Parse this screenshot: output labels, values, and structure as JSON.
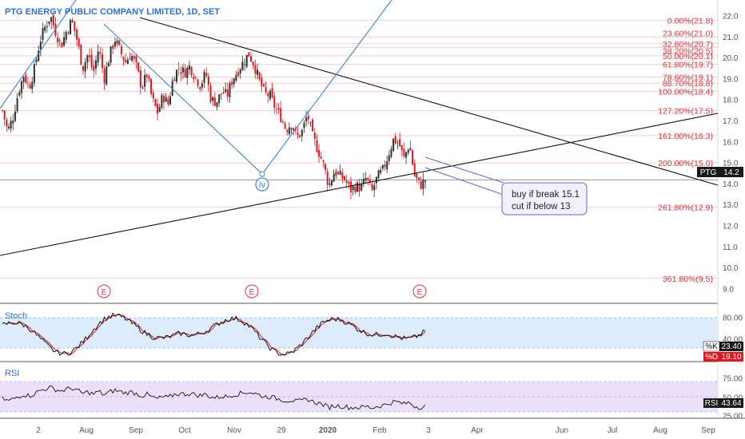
{
  "colors": {
    "up": "#2e2e2e",
    "down": "#e0161f",
    "fib": "#e8313a",
    "trend": "#111111",
    "wave": "#3a86d8",
    "stoch_bg": "#dcecfb",
    "rsi_bg": "#ece0fb",
    "k_line": "#111111",
    "d_line": "#e0161f",
    "note_border": "#5b6bd6",
    "note_bg": "#f3f0ff"
  },
  "chart_data": {
    "type": "candlestick",
    "title": "PTG ENERGY PUBLIC COMPANY LIMITED, 1D, SET",
    "symbol": "PTG",
    "last_price": "14.2",
    "x_tick_labels": [
      "2",
      "Aug",
      "Sep",
      "Oct",
      "Nov",
      "29",
      "2020",
      "Feb",
      "3",
      "Apr",
      "Jun",
      "Jul",
      "Aug",
      "Sep"
    ],
    "y_tick_labels": [
      "22.0",
      "21.0",
      "20.0",
      "19.0",
      "18.0",
      "17.0",
      "16.0",
      "15.0",
      "14.0",
      "13.0",
      "12.0",
      "11.0",
      "10.0",
      "9.0"
    ],
    "ylim": [
      8.5,
      22.3
    ],
    "fibonacci_levels": [
      {
        "label": "0.00%(21.8)",
        "price": 21.8
      },
      {
        "label": "23.60%(21.0)",
        "price": 21.0
      },
      {
        "label": "32.80%(20.7)",
        "price": 20.7
      },
      {
        "label": "38.20%(20.5)",
        "price": 20.5
      },
      {
        "label": "50.00%(20.1)",
        "price": 20.1
      },
      {
        "label": "61.80%(19.7)",
        "price": 19.7
      },
      {
        "label": "78.60%(19.1)",
        "price": 19.1
      },
      {
        "label": "88.70%(18.8)",
        "price": 18.8
      },
      {
        "label": "100.00%(18.4)",
        "price": 18.4
      },
      {
        "label": "127.20%(17.5)",
        "price": 17.5
      },
      {
        "label": "161.00%(16.3)",
        "price": 16.3
      },
      {
        "label": "200.00%(15.0)",
        "price": 15.0
      },
      {
        "label": "261.80%(12.9)",
        "price": 12.9
      },
      {
        "label": "361.80%(9.5)",
        "price": 9.5
      }
    ],
    "close_path": [
      17.5,
      16.5,
      17.2,
      18.4,
      19.2,
      18.6,
      19.5,
      20.8,
      21.5,
      22.0,
      21.2,
      20.6,
      21.3,
      21.8,
      20.8,
      19.5,
      20.2,
      19.3,
      20.5,
      19.0,
      20.1,
      20.9,
      20.3,
      19.8,
      20.2,
      19.6,
      18.6,
      19.2,
      18.0,
      17.4,
      18.2,
      17.8,
      19.2,
      19.5,
      19.3,
      19.6,
      19.1,
      18.7,
      19.3,
      18.0,
      17.9,
      18.4,
      18.2,
      19.0,
      19.4,
      19.8,
      20.2,
      19.7,
      18.9,
      18.3,
      18.2,
      17.6,
      17.2,
      16.6,
      16.9,
      16.2,
      16.5,
      17.3,
      16.2,
      15.6,
      14.9,
      13.9,
      14.6,
      14.4,
      14.2,
      13.7,
      13.9,
      13.8,
      14.3,
      13.6,
      14.3,
      14.6,
      15.3,
      16.1,
      16.0,
      15.2,
      15.9,
      14.4,
      13.9,
      14.2
    ],
    "stoch": {
      "label": "Stoch",
      "k": "23.40",
      "d": "19.10",
      "levels": [
        "80.00",
        "40.00"
      ]
    },
    "rsi": {
      "label": "RSI",
      "value": "43.64",
      "levels": [
        "75.00",
        "50.00",
        "25.00"
      ]
    },
    "wave_label": "iv",
    "earnings_markers": [
      "E",
      "E",
      "E"
    ],
    "annotation": [
      "buy if break 15.1",
      "cut if below 13"
    ]
  }
}
